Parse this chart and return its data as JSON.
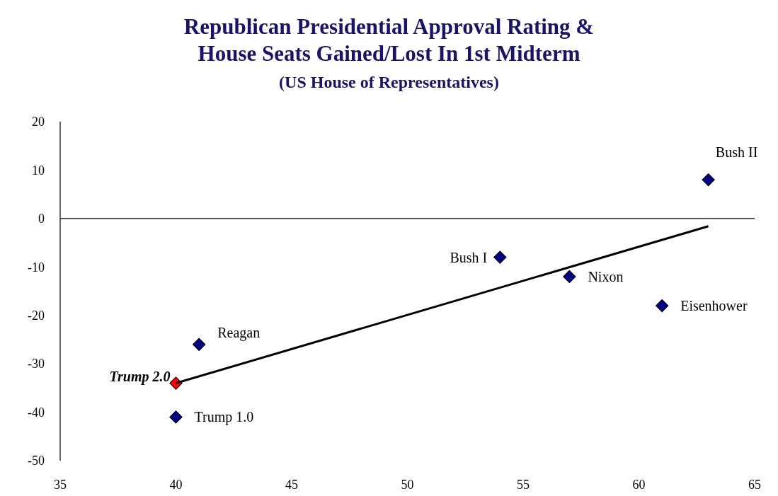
{
  "chart_data": {
    "type": "scatter",
    "title": "Republican Presidential Approval Rating &\nHouse Seats Gained/Lost In 1st Midterm",
    "subtitle": "(US House of Representatives)",
    "x": [
      63,
      54,
      57,
      61,
      41,
      40,
      40
    ],
    "series": [
      {
        "marker": "diamond",
        "color": "#000080",
        "colors": [
          "#000080",
          "#000080",
          "#000080",
          "#000080",
          "#000080",
          "#ff0000",
          "#000080"
        ],
        "values": [
          8,
          -8,
          -12,
          -18,
          -26,
          -34,
          -41
        ]
      },
      {
        "type": "line",
        "color": "#000000",
        "x": [
          40,
          63
        ],
        "values": [
          -34,
          -1.6
        ]
      }
    ],
    "xlim": [
      35,
      65
    ],
    "xticks": [
      35,
      40,
      45,
      50,
      55,
      60,
      65
    ],
    "ylim": [
      -50,
      20
    ],
    "yticks": [
      -50,
      -40,
      -30,
      -20,
      -10,
      0,
      10,
      20
    ],
    "ref_lines": [
      {
        "axis": "y",
        "value": 0,
        "color": "#333333"
      }
    ],
    "grid": false,
    "annotations": [
      {
        "text": "Bush II",
        "x": 63,
        "y": 8
      },
      {
        "text": "Bush I",
        "x": 54,
        "y": -8
      },
      {
        "text": "Nixon",
        "x": 57,
        "y": -12
      },
      {
        "text": "Eisenhower",
        "x": 61,
        "y": -18
      },
      {
        "text": "Reagan",
        "x": 41,
        "y": -26
      },
      {
        "text": "Trump 2.0",
        "x": 40,
        "y": -34
      },
      {
        "text": "Trump 1.0",
        "x": 40,
        "y": -41
      }
    ]
  }
}
